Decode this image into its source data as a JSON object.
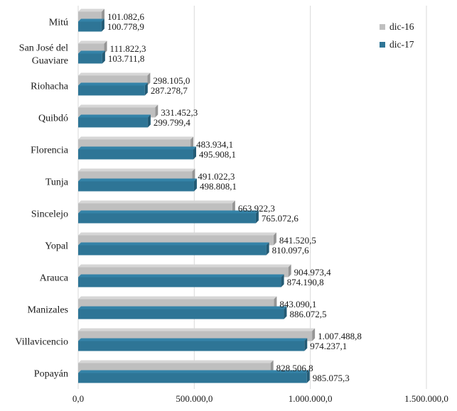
{
  "chart_data": {
    "type": "bar",
    "orientation": "horizontal",
    "bar_style": "3d",
    "categories": [
      "Mitú",
      "San José del Guaviare",
      "Riohacha",
      "Quibdó",
      "Florencia",
      "Tunja",
      "Sincelejo",
      "Yopal",
      "Arauca",
      "Manizales",
      "Villavicencio",
      "Popayán"
    ],
    "category_label_lines": [
      [
        "Mitú"
      ],
      [
        "San José del",
        "Guaviare"
      ],
      [
        "Riohacha"
      ],
      [
        "Quibdó"
      ],
      [
        "Florencia"
      ],
      [
        "Tunja"
      ],
      [
        "Sincelejo"
      ],
      [
        "Yopal"
      ],
      [
        "Arauca"
      ],
      [
        "Manizales"
      ],
      [
        "Villavicencio"
      ],
      [
        "Popayán"
      ]
    ],
    "series": [
      {
        "name": "dic-16",
        "color": "#bfbfbf",
        "values": [
          101082.6,
          111822.3,
          298105.0,
          331452.3,
          483934.1,
          491022.3,
          663922.3,
          841520.5,
          904973.4,
          843090.1,
          1007488.8,
          828506.8
        ],
        "labels": [
          "101.082,6",
          "111.822,3",
          "298.105,0",
          "331.452,3",
          "483.934,1",
          "491.022,3",
          "663.922,3",
          "841.520,5",
          "904.973,4",
          "843.090,1",
          "1.007.488,8",
          "828.506,8"
        ]
      },
      {
        "name": "dic-17",
        "color": "#2e7596",
        "values": [
          100778.9,
          103711.8,
          287278.7,
          299799.4,
          495908.1,
          498808.1,
          765072.6,
          810097.6,
          874190.8,
          886072.5,
          974237.1,
          985075.3
        ],
        "labels": [
          "100.778,9",
          "103.711,8",
          "287.278,7",
          "299.799,4",
          "495.908,1",
          "498.808,1",
          "765.072,6",
          "810.097,6",
          "874.190,8",
          "886.072,5",
          "974.237,1",
          "985.075,3"
        ]
      }
    ],
    "xlim": [
      0,
      1500000
    ],
    "xticks": [
      0,
      500000,
      1000000,
      1500000
    ],
    "xtick_labels": [
      "0,0",
      "500.000,0",
      "1.000.000,0",
      "1.500.000,0"
    ],
    "grid": true,
    "legend_position": "top-right",
    "title": "",
    "xlabel": "",
    "ylabel": ""
  }
}
